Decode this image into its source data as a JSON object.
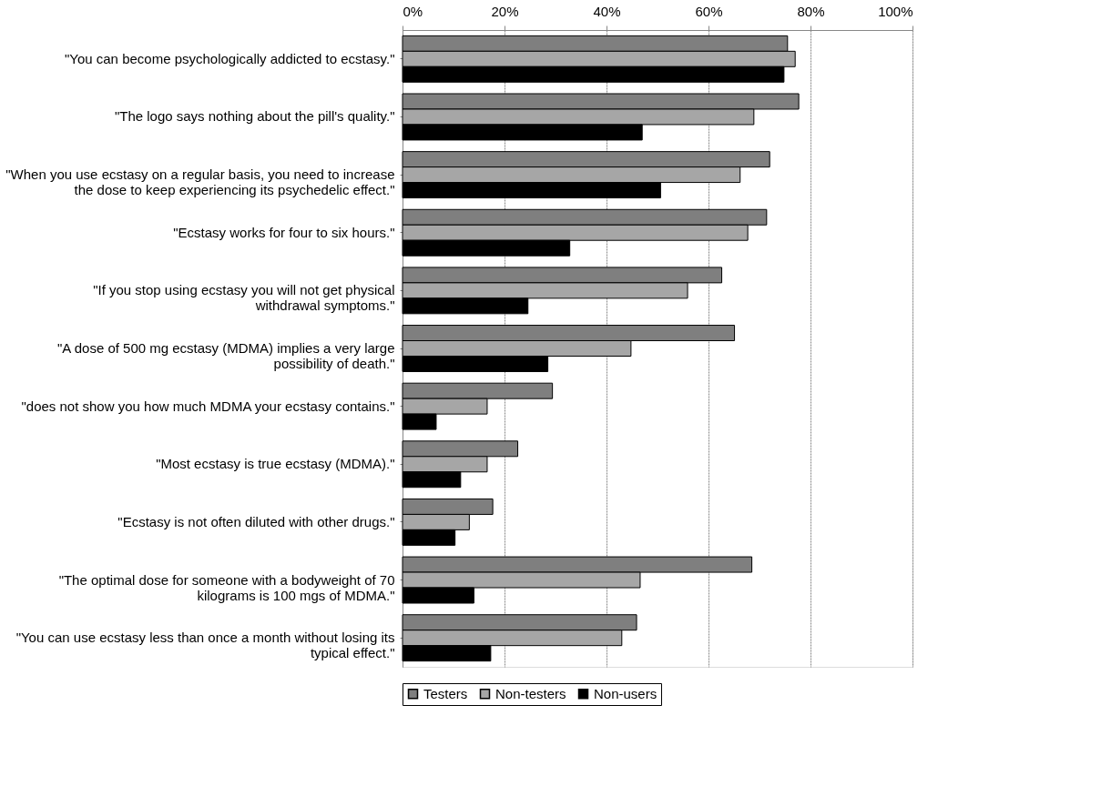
{
  "chart_data": {
    "type": "bar",
    "orientation": "horizontal",
    "categories": [
      "\"You can become psychologically addicted to ecstasy.\"",
      "\"The logo says nothing about the pill's quality.\"",
      "\"When you use ecstasy on a regular basis, you need to increase the dose to keep experiencing its psychedelic effect.\"",
      "\"Ecstasy works for four to six hours.\"",
      "\"If you stop using ecstasy you will not get physical withdrawal symptoms.\"",
      "\"A dose of 500 mg ecstasy (MDMA) implies a very large possibility of death.\"",
      "\"does not show you how much MDMA your ecstasy contains.\"",
      "\"Most ecstasy is true ecstasy (MDMA).\"",
      "\"Ecstasy is not often diluted with other drugs.\"",
      "\"The optimal dose for someone with a bodyweight of 70 kilograms is 100 mgs of MDMA.\"",
      "\"You can use ecstasy less than once a month without losing its typical effect.\""
    ],
    "series": [
      {
        "name": "Testers",
        "color": "#7f7f7f",
        "values": [
          75.5,
          77.7,
          72,
          71.4,
          62.6,
          65.1,
          29.4,
          22.6,
          17.7,
          68.5,
          45.9
        ]
      },
      {
        "name": "Non-testers",
        "color": "#a6a6a6",
        "values": [
          77,
          68.9,
          66.2,
          67.7,
          55.9,
          44.8,
          16.6,
          16.6,
          13.1,
          46.6,
          43
        ]
      },
      {
        "name": "Non-users",
        "color": "#000000",
        "values": [
          74.8,
          47,
          50.6,
          32.8,
          24.6,
          28.5,
          6.6,
          11.4,
          10.3,
          14,
          17.3
        ]
      }
    ],
    "xlim": [
      0,
      100
    ],
    "xticks": [
      {
        "value": 0,
        "label": "0%"
      },
      {
        "value": 20,
        "label": "20%"
      },
      {
        "value": 40,
        "label": "40%"
      },
      {
        "value": 60,
        "label": "60%"
      },
      {
        "value": 80,
        "label": "80%"
      },
      {
        "value": 100,
        "label": "100%"
      }
    ],
    "grid": "x",
    "legend": "bottom"
  }
}
